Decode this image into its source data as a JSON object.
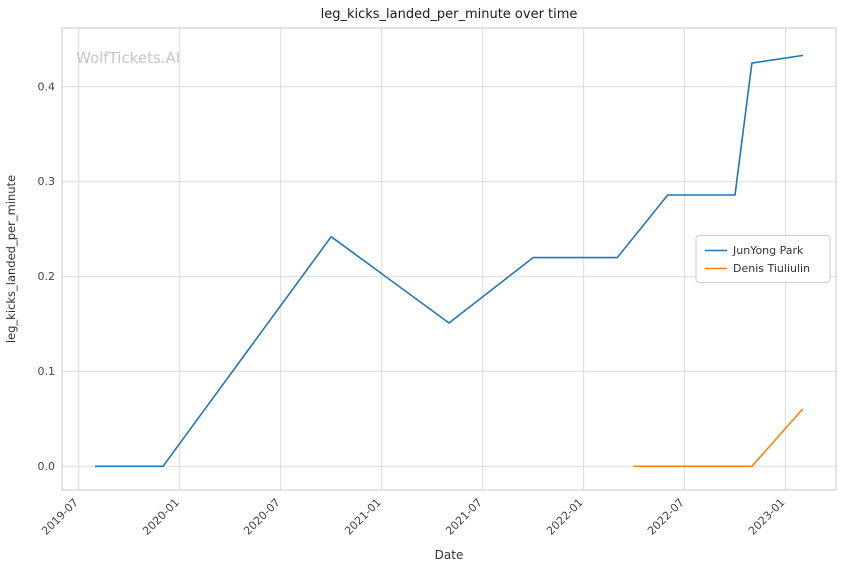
{
  "watermark": "WolfTickets.AI",
  "chart_data": {
    "type": "line",
    "title": "leg_kicks_landed_per_minute over time",
    "xlabel": "Date",
    "ylabel": "leg_kicks_landed_per_minute",
    "grid": true,
    "legend_position": "center right",
    "x_tick_labels": [
      "2019-07",
      "2020-01",
      "2020-07",
      "2021-01",
      "2021-07",
      "2022-01",
      "2022-07",
      "2023-01"
    ],
    "y_tick_labels": [
      "0.0",
      "0.1",
      "0.2",
      "0.3",
      "0.4"
    ],
    "xlim": [
      "2019-06",
      "2023-04"
    ],
    "ylim": [
      -0.025,
      0.462
    ],
    "series": [
      {
        "name": "JunYong Park",
        "color": "#1f77b4",
        "x": [
          "2019-08",
          "2019-12",
          "2020-10",
          "2021-05",
          "2021-10",
          "2022-03",
          "2022-06",
          "2022-10",
          "2022-11",
          "2023-02"
        ],
        "y": [
          0.0,
          0.0,
          0.242,
          0.151,
          0.22,
          0.22,
          0.286,
          0.286,
          0.425,
          0.433
        ]
      },
      {
        "name": "Denis Tiuliulin",
        "color": "#ff7f0e",
        "x": [
          "2022-04",
          "2022-11",
          "2023-02"
        ],
        "y": [
          0.0,
          0.0,
          0.06
        ]
      }
    ]
  }
}
